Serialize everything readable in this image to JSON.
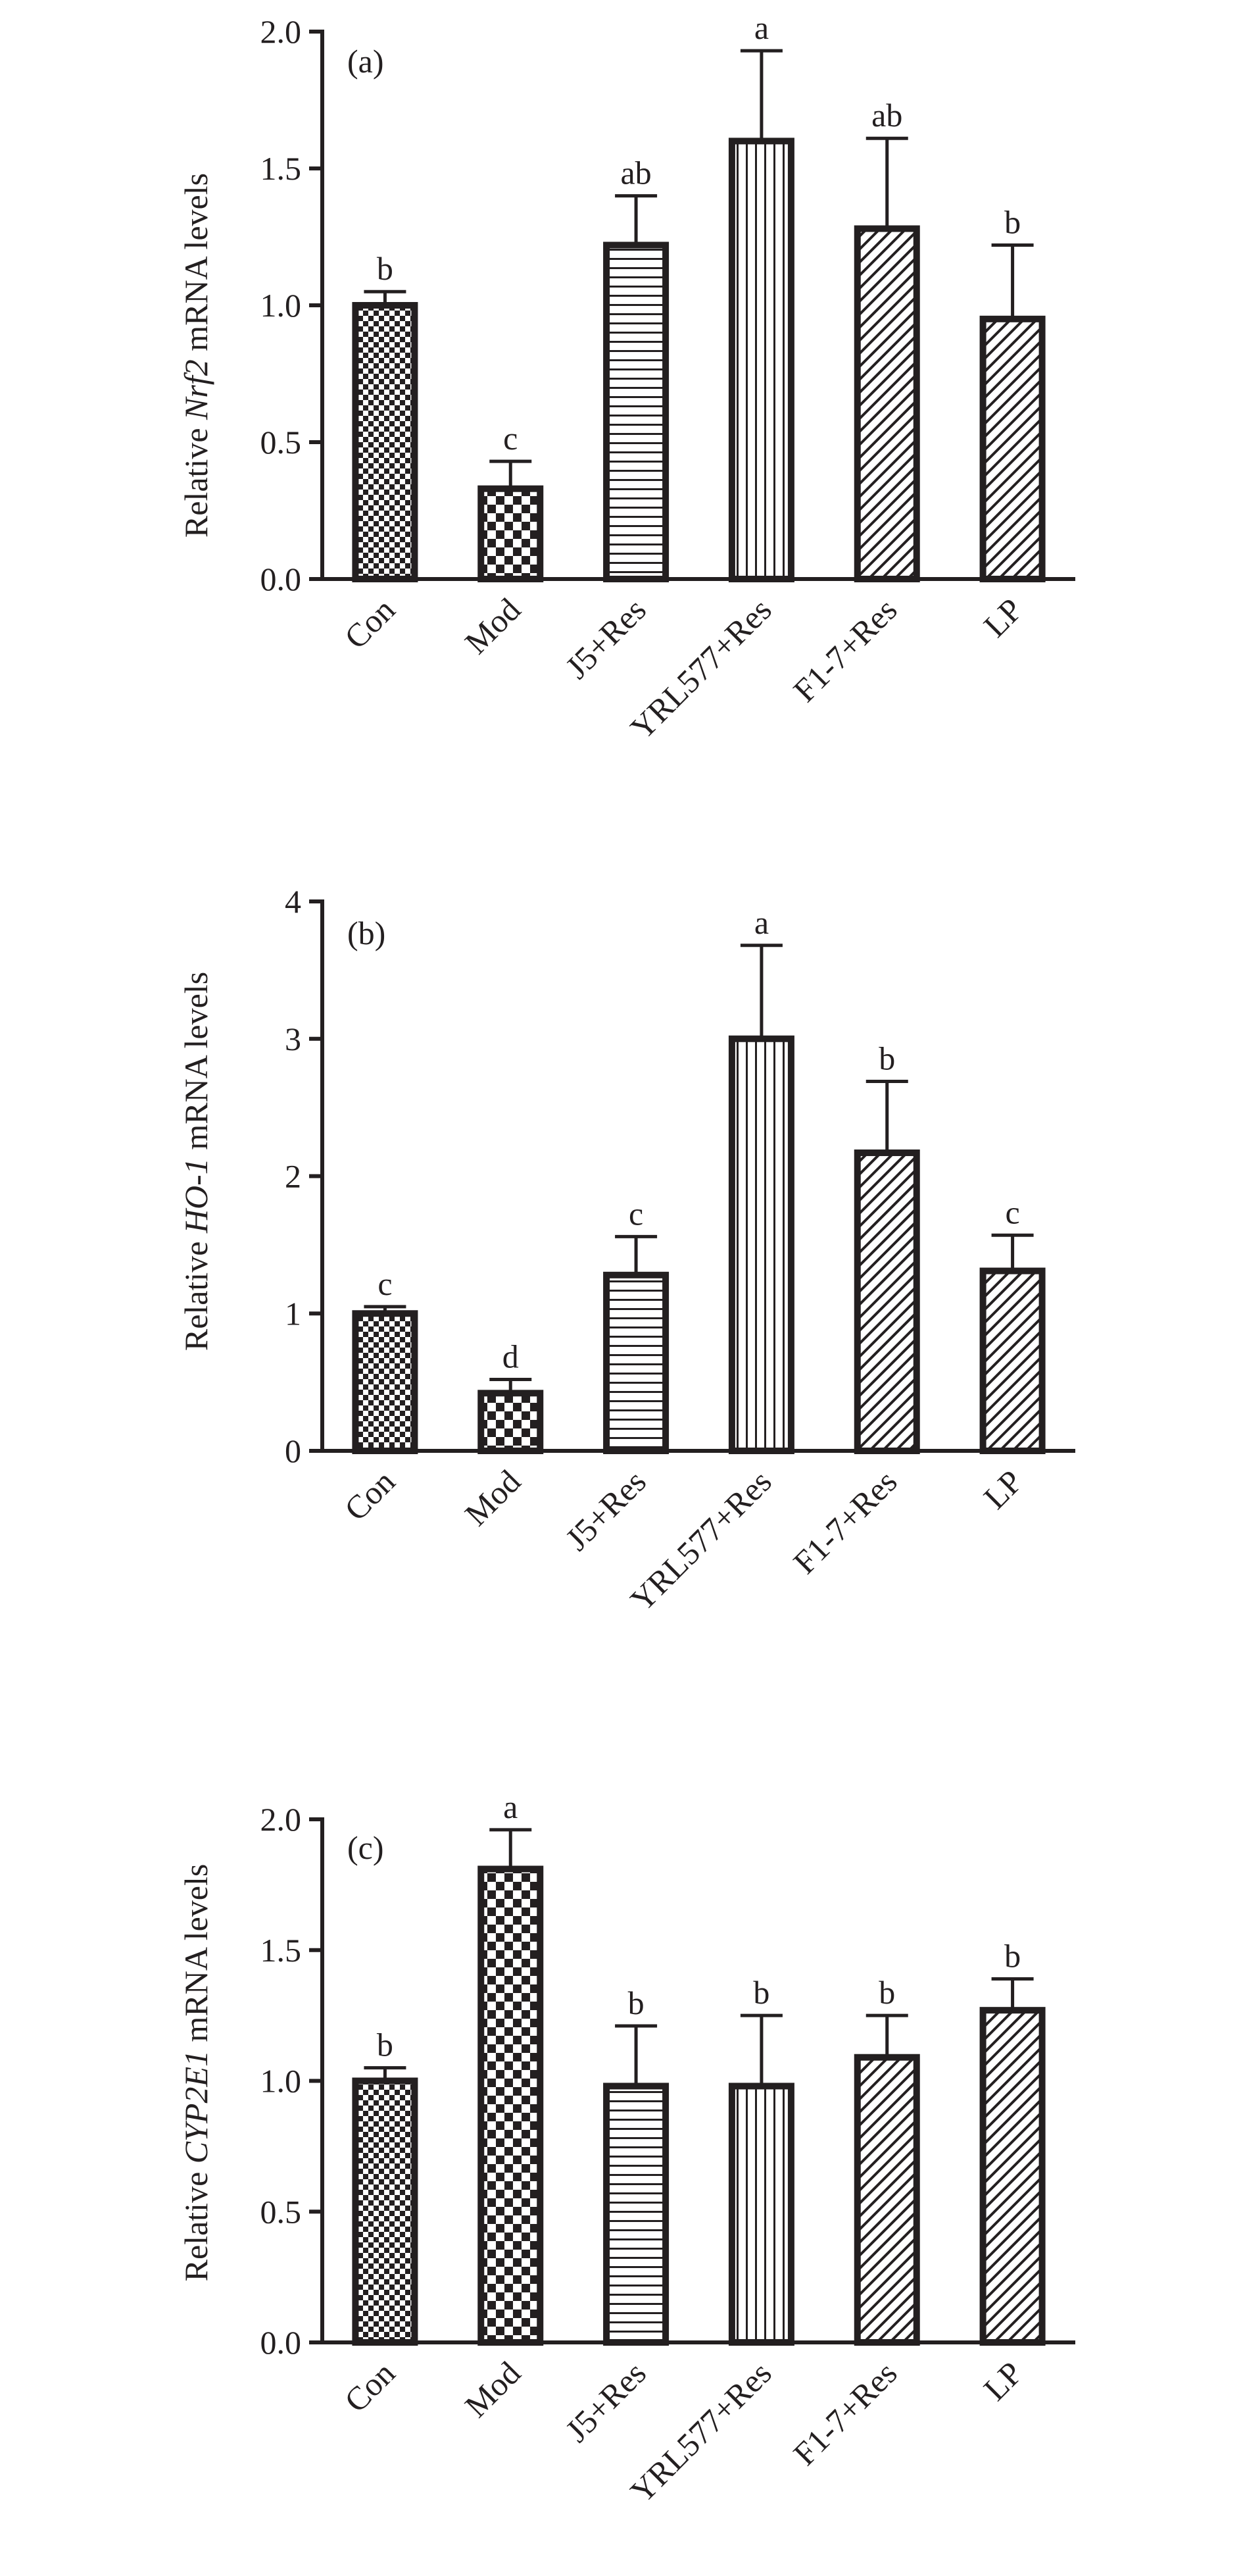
{
  "chart_data": [
    {
      "type": "bar",
      "panel_label": "(a)",
      "title": "",
      "ylabel": {
        "prefix": "Relative ",
        "gene": "Nrf2",
        "suffix": " mRNA levels"
      },
      "xlabel": "",
      "categories": [
        "Con",
        "Mod",
        "J5+Res",
        "YRL577+Res",
        "F1-7+Res",
        "LP"
      ],
      "values": [
        1.0,
        0.33,
        1.22,
        1.6,
        1.28,
        0.95
      ],
      "errors": [
        0.05,
        0.1,
        0.18,
        0.33,
        0.33,
        0.27
      ],
      "significance": [
        "b",
        "c",
        "ab",
        "a",
        "ab",
        "b"
      ],
      "ylim": [
        0,
        2.0
      ],
      "yticks": [
        0.0,
        0.5,
        1.0,
        1.5,
        2.0
      ],
      "ytick_labels": [
        "0.0",
        "0.5",
        "1.0",
        "1.5",
        "2.0"
      ],
      "patterns": [
        "checker-small",
        "checker-large",
        "horizontal",
        "vertical",
        "diagonal",
        "diagonal"
      ],
      "grid": false,
      "legend": "none"
    },
    {
      "type": "bar",
      "panel_label": "(b)",
      "title": "",
      "ylabel": {
        "prefix": "Relative ",
        "gene": "HO-1",
        "suffix": " mRNA levels"
      },
      "xlabel": "",
      "categories": [
        "Con",
        "Mod",
        "J5+Res",
        "YRL577+Res",
        "F1-7+Res",
        "LP"
      ],
      "values": [
        1.0,
        0.42,
        1.28,
        3.0,
        2.17,
        1.31
      ],
      "errors": [
        0.05,
        0.1,
        0.28,
        0.68,
        0.52,
        0.26
      ],
      "significance": [
        "c",
        "d",
        "c",
        "a",
        "b",
        "c"
      ],
      "ylim": [
        0,
        4
      ],
      "yticks": [
        0,
        1,
        2,
        3,
        4
      ],
      "ytick_labels": [
        "0",
        "1",
        "2",
        "3",
        "4"
      ],
      "patterns": [
        "checker-small",
        "checker-large",
        "horizontal",
        "vertical",
        "diagonal",
        "diagonal"
      ],
      "grid": false,
      "legend": "none"
    },
    {
      "type": "bar",
      "panel_label": "(c)",
      "title": "",
      "ylabel": {
        "prefix": "Relative ",
        "gene": "CYP2E1",
        "suffix": " mRNA levels"
      },
      "xlabel": "",
      "categories": [
        "Con",
        "Mod",
        "J5+Res",
        "YRL577+Res",
        "F1-7+Res",
        "LP"
      ],
      "values": [
        1.0,
        1.81,
        0.98,
        0.98,
        1.09,
        1.27
      ],
      "errors": [
        0.05,
        0.15,
        0.23,
        0.27,
        0.16,
        0.12
      ],
      "significance": [
        "b",
        "a",
        "b",
        "b",
        "b",
        "b"
      ],
      "ylim": [
        0,
        2.0
      ],
      "yticks": [
        0.0,
        0.5,
        1.0,
        1.5,
        2.0
      ],
      "ytick_labels": [
        "0.0",
        "0.5",
        "1.0",
        "1.5",
        "2.0"
      ],
      "patterns": [
        "checker-small",
        "checker-large",
        "horizontal",
        "vertical",
        "diagonal",
        "diagonal"
      ],
      "grid": false,
      "legend": "none"
    }
  ],
  "colors": {
    "ink": "#231f20",
    "background": "#ffffff"
  }
}
